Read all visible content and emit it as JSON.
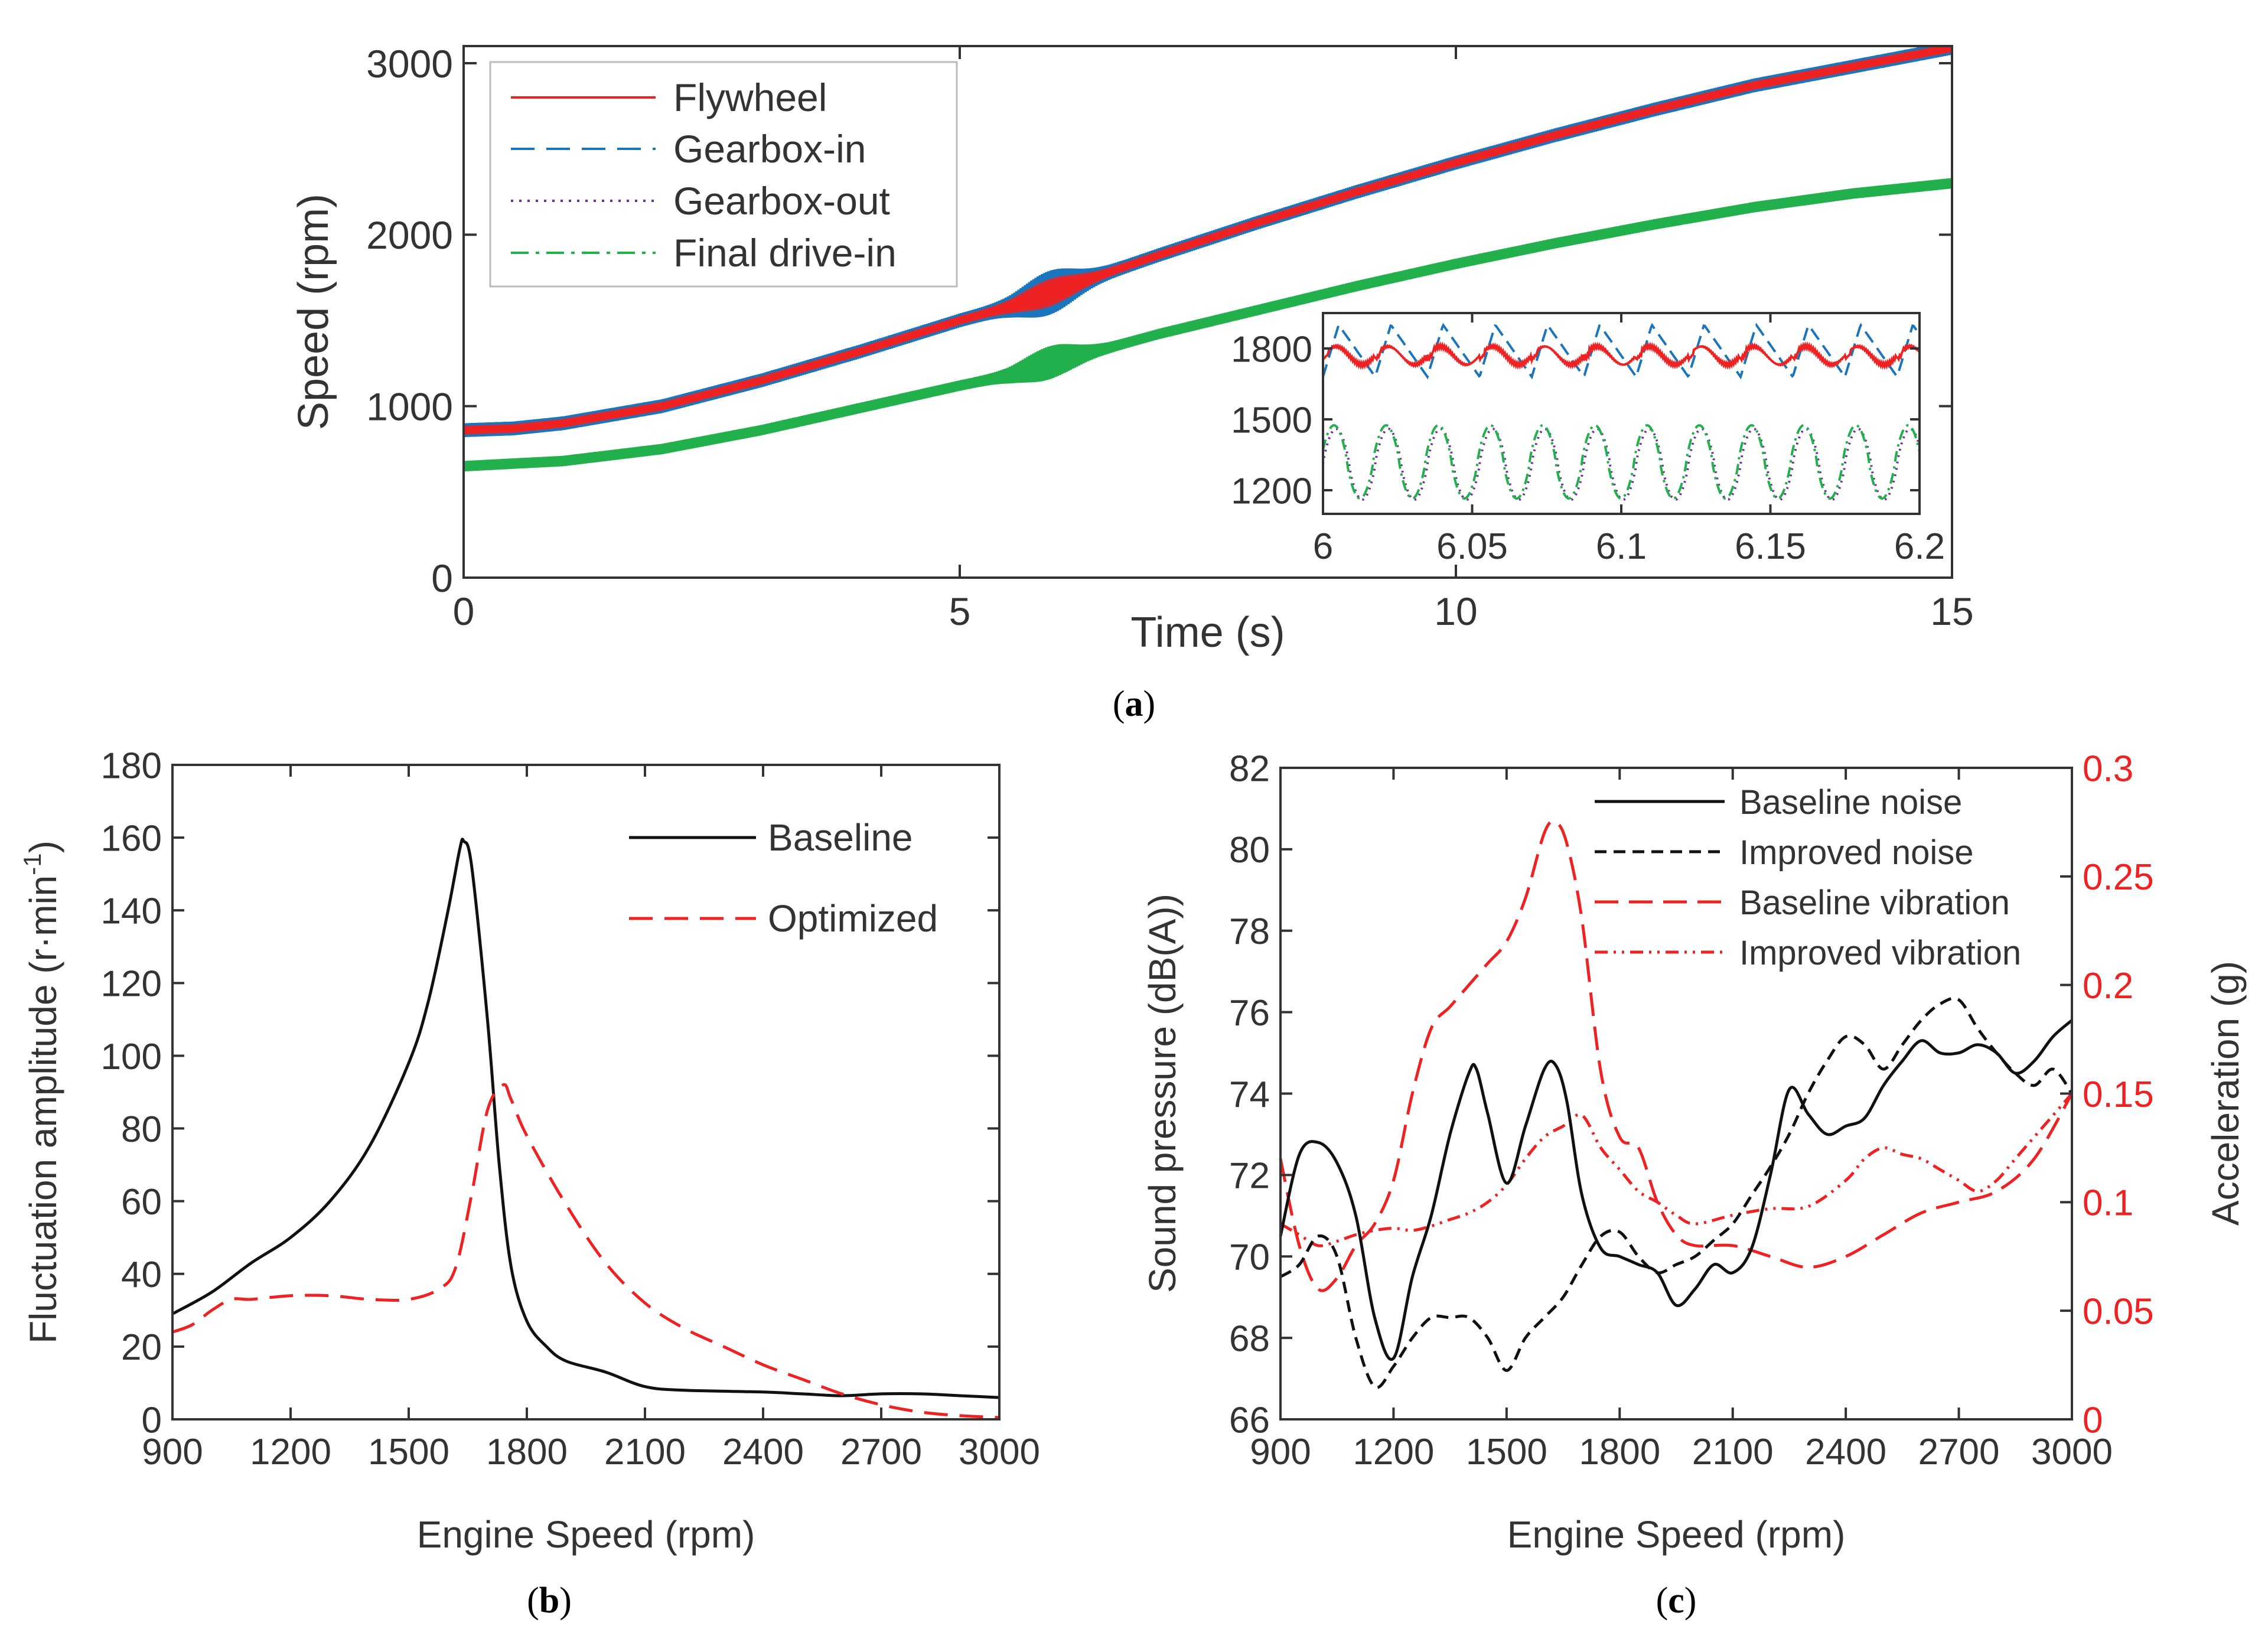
{
  "colors": {
    "red": "#ee2222",
    "blue": "#1b75bc",
    "purple": "#7030a0",
    "green": "#22b04c",
    "black": "#111111"
  },
  "chart_data": [
    {
      "id": "a",
      "type": "line",
      "caption": {
        "open": "(",
        "letter": "a",
        "close": ")"
      },
      "xlabel": "Time (s)",
      "ylabel": "Speed (rpm)",
      "xlim": [
        0,
        15
      ],
      "ylim": [
        0,
        3100
      ],
      "xticks": [
        "0",
        "5",
        "10",
        "15"
      ],
      "xtick_values": [
        0,
        5,
        10,
        15
      ],
      "yticks": [
        "0",
        "1000",
        "2000",
        "3000"
      ],
      "ytick_values": [
        0,
        1000,
        2000,
        3000
      ],
      "legend": [
        "Flywheel",
        "Gearbox-in",
        "Gearbox-out",
        "Final drive-in"
      ],
      "series": [
        {
          "name": "Flywheel",
          "x": [
            0,
            0.5,
            1,
            2,
            3,
            4,
            5,
            5.5,
            6,
            6.5,
            7,
            8,
            9,
            10,
            11,
            12,
            13,
            14,
            15
          ],
          "y": [
            860,
            870,
            900,
            1000,
            1150,
            1320,
            1500,
            1580,
            1680,
            1780,
            1880,
            2070,
            2250,
            2420,
            2580,
            2730,
            2870,
            2980,
            3090
          ],
          "ripple": 25
        },
        {
          "name": "Gearbox-in",
          "x": [
            0,
            0.5,
            1,
            2,
            3,
            4,
            5,
            5.5,
            6,
            6.5,
            7,
            8,
            9,
            10,
            11,
            12,
            13,
            14,
            15
          ],
          "y": [
            860,
            870,
            900,
            1000,
            1150,
            1320,
            1500,
            1580,
            1680,
            1780,
            1880,
            2070,
            2250,
            2420,
            2580,
            2730,
            2870,
            2980,
            3090
          ],
          "ripple": 40
        },
        {
          "name": "Gearbox-out",
          "x": [
            0,
            0.5,
            1,
            2,
            3,
            4,
            5,
            5.5,
            6,
            6.5,
            7,
            8,
            9,
            10,
            11,
            12,
            13,
            14,
            15
          ],
          "y": [
            860,
            870,
            900,
            1000,
            1150,
            1320,
            1500,
            1580,
            1680,
            1780,
            1880,
            2070,
            2250,
            2420,
            2580,
            2730,
            2870,
            2980,
            3090
          ],
          "ripple": 30
        },
        {
          "name": "Final drive-in",
          "x": [
            0,
            1,
            2,
            3,
            4,
            5,
            5.5,
            6,
            6.5,
            7,
            8,
            9,
            10,
            11,
            12,
            13,
            14,
            15
          ],
          "y": [
            650,
            680,
            750,
            860,
            990,
            1120,
            1180,
            1270,
            1340,
            1420,
            1560,
            1700,
            1830,
            1950,
            2060,
            2160,
            2240,
            2300
          ],
          "ripple": 30
        }
      ],
      "inset": {
        "xlim": [
          6,
          6.2
        ],
        "ylim": [
          1100,
          1950
        ],
        "xticks": [
          "6",
          "6.05",
          "6.1",
          "6.15",
          "6.2"
        ],
        "xtick_values": [
          6,
          6.05,
          6.1,
          6.15,
          6.2
        ],
        "yticks": [
          "1200",
          "1500",
          "1800"
        ],
        "ytick_values": [
          1200,
          1500,
          1800
        ],
        "series": [
          {
            "name": "Flywheel",
            "base": 1770,
            "amp": 55,
            "period": 0.0175,
            "shape": "saw"
          },
          {
            "name": "Gearbox-in",
            "base": 1790,
            "amp": 110,
            "period": 0.0175,
            "shape": "saw"
          },
          {
            "name": "Gearbox-out",
            "base": 1310,
            "amp": 150,
            "period": 0.0175,
            "shape": "sine"
          },
          {
            "name": "Final drive-in",
            "base": 1320,
            "amp": 155,
            "period": 0.0175,
            "shape": "sine"
          }
        ]
      }
    },
    {
      "id": "b",
      "type": "line",
      "caption": {
        "open": "(",
        "letter": "b",
        "close": ")"
      },
      "xlabel": "Engine Speed (rpm)",
      "ylabel": "Fluctuation amplitude (r·min",
      "ylabel_sup": "-1",
      "ylabel_close": ")",
      "xlim": [
        900,
        3000
      ],
      "ylim": [
        0,
        180
      ],
      "xticks": [
        "900",
        "1200",
        "1500",
        "1800",
        "2100",
        "2400",
        "2700",
        "3000"
      ],
      "xtick_values": [
        900,
        1200,
        1500,
        1800,
        2100,
        2400,
        2700,
        3000
      ],
      "yticks": [
        "0",
        "20",
        "40",
        "60",
        "80",
        "100",
        "120",
        "140",
        "160",
        "180"
      ],
      "ytick_values": [
        0,
        20,
        40,
        60,
        80,
        100,
        120,
        140,
        160,
        180
      ],
      "legend": [
        "Baseline",
        "Optimized"
      ],
      "series": [
        {
          "name": "Baseline",
          "x": [
            900,
            1000,
            1100,
            1200,
            1300,
            1400,
            1500,
            1550,
            1600,
            1630,
            1640,
            1660,
            1700,
            1730,
            1760,
            1800,
            1850,
            1900,
            2000,
            2100,
            2200,
            2400,
            2500,
            2600,
            2700,
            2800,
            2900,
            3000
          ],
          "y": [
            29,
            35,
            43,
            50,
            60,
            75,
            98,
            115,
            140,
            157,
            159,
            152,
            110,
            70,
            42,
            27,
            20,
            16,
            13,
            9,
            8,
            7.5,
            7,
            6.5,
            7,
            7,
            6.5,
            6
          ]
        },
        {
          "name": "Optimized",
          "x": [
            900,
            950,
            1000,
            1050,
            1100,
            1200,
            1300,
            1400,
            1500,
            1580,
            1620,
            1660,
            1700,
            1740,
            1760,
            1800,
            1900,
            2000,
            2100,
            2200,
            2300,
            2400,
            2500,
            2600,
            2700,
            2800,
            2900,
            3000
          ],
          "y": [
            24,
            26,
            30,
            33,
            33,
            34,
            34,
            33,
            33,
            36,
            42,
            62,
            85,
            92,
            88,
            78,
            59,
            43,
            32,
            25,
            20,
            15,
            11,
            7,
            4,
            2,
            1,
            0.5
          ]
        }
      ]
    },
    {
      "id": "c",
      "type": "line",
      "caption": {
        "open": "(",
        "letter": "c",
        "close": ")"
      },
      "xlabel": "Engine Speed (rpm)",
      "ylabel": "Sound pressure (dB(A))",
      "y2label": "Acceleration (g)",
      "xlim": [
        900,
        3000
      ],
      "ylim": [
        66,
        82
      ],
      "y2lim": [
        0,
        0.3
      ],
      "xticks": [
        "900",
        "1200",
        "1500",
        "1800",
        "2100",
        "2400",
        "2700",
        "3000"
      ],
      "xtick_values": [
        900,
        1200,
        1500,
        1800,
        2100,
        2400,
        2700,
        3000
      ],
      "yticks": [
        "66",
        "68",
        "70",
        "72",
        "74",
        "76",
        "78",
        "80",
        "82"
      ],
      "ytick_values": [
        66,
        68,
        70,
        72,
        74,
        76,
        78,
        80,
        82
      ],
      "y2ticks": [
        "0",
        "0.05",
        "0.1",
        "0.15",
        "0.2",
        "0.25",
        "0.3"
      ],
      "y2tick_values": [
        0,
        0.05,
        0.1,
        0.15,
        0.2,
        0.25,
        0.3
      ],
      "legend": [
        "Baseline noise",
        "Improved noise",
        "Baseline vibration",
        "Improved vibration"
      ],
      "series": [
        {
          "name": "Baseline noise",
          "axis": "left",
          "x": [
            900,
            950,
            1000,
            1050,
            1100,
            1150,
            1200,
            1250,
            1300,
            1350,
            1400,
            1420,
            1450,
            1500,
            1550,
            1600,
            1630,
            1660,
            1700,
            1750,
            1800,
            1850,
            1900,
            1950,
            2000,
            2050,
            2100,
            2150,
            2200,
            2250,
            2300,
            2350,
            2400,
            2450,
            2500,
            2550,
            2600,
            2650,
            2700,
            2750,
            2800,
            2850,
            2900,
            2950,
            3000
          ],
          "y": [
            70.5,
            72.5,
            72.8,
            72.3,
            71,
            68.5,
            67.5,
            69.5,
            71,
            73,
            74.5,
            74.6,
            73.5,
            71.8,
            73.2,
            74.6,
            74.7,
            73.8,
            71.5,
            70.2,
            70,
            69.8,
            69.6,
            68.8,
            69.2,
            69.8,
            69.6,
            70.2,
            72,
            74.1,
            73.5,
            73,
            73.2,
            73.4,
            74.2,
            74.8,
            75.3,
            75,
            75,
            75.2,
            75,
            74.5,
            74.8,
            75.4,
            75.8
          ]
        },
        {
          "name": "Improved noise",
          "axis": "left",
          "x": [
            900,
            950,
            1000,
            1050,
            1100,
            1150,
            1200,
            1250,
            1300,
            1350,
            1400,
            1450,
            1500,
            1550,
            1600,
            1650,
            1700,
            1750,
            1800,
            1850,
            1900,
            1950,
            2000,
            2050,
            2100,
            2150,
            2200,
            2250,
            2300,
            2350,
            2400,
            2450,
            2500,
            2550,
            2600,
            2650,
            2700,
            2750,
            2800,
            2850,
            2900,
            2950,
            3000
          ],
          "y": [
            69.5,
            69.8,
            70.5,
            70,
            68,
            66.8,
            67.3,
            68,
            68.5,
            68.5,
            68.5,
            68,
            67.2,
            68,
            68.5,
            69,
            69.8,
            70.5,
            70.6,
            70,
            69.6,
            69.8,
            70,
            70.4,
            70.8,
            71.5,
            72.2,
            73,
            74,
            74.8,
            75.4,
            75.2,
            74.6,
            75.2,
            75.8,
            76.2,
            76.3,
            75.6,
            75,
            74.5,
            74.2,
            74.6,
            74
          ]
        },
        {
          "name": "Baseline vibration",
          "axis": "right",
          "x": [
            900,
            950,
            1000,
            1050,
            1100,
            1150,
            1200,
            1250,
            1300,
            1350,
            1400,
            1450,
            1500,
            1550,
            1600,
            1630,
            1660,
            1700,
            1750,
            1800,
            1850,
            1900,
            1950,
            2000,
            2100,
            2200,
            2300,
            2400,
            2500,
            2600,
            2700,
            2800,
            2900,
            3000
          ],
          "y": [
            0.12,
            0.08,
            0.06,
            0.065,
            0.08,
            0.09,
            0.11,
            0.15,
            0.18,
            0.19,
            0.2,
            0.21,
            0.22,
            0.24,
            0.27,
            0.275,
            0.265,
            0.23,
            0.16,
            0.13,
            0.125,
            0.1,
            0.085,
            0.08,
            0.08,
            0.075,
            0.07,
            0.075,
            0.085,
            0.095,
            0.1,
            0.105,
            0.12,
            0.15
          ]
        },
        {
          "name": "Improved vibration",
          "axis": "right",
          "x": [
            900,
            950,
            1000,
            1050,
            1100,
            1150,
            1200,
            1250,
            1300,
            1350,
            1400,
            1450,
            1500,
            1550,
            1600,
            1650,
            1700,
            1750,
            1800,
            1850,
            1900,
            1950,
            2000,
            2100,
            2200,
            2300,
            2400,
            2450,
            2500,
            2550,
            2600,
            2650,
            2700,
            2750,
            2800,
            2850,
            2900,
            2950,
            3000
          ],
          "y": [
            0.09,
            0.085,
            0.08,
            0.082,
            0.085,
            0.087,
            0.088,
            0.087,
            0.089,
            0.092,
            0.095,
            0.1,
            0.108,
            0.12,
            0.13,
            0.135,
            0.14,
            0.125,
            0.115,
            0.105,
            0.1,
            0.094,
            0.09,
            0.094,
            0.097,
            0.098,
            0.11,
            0.12,
            0.125,
            0.122,
            0.12,
            0.115,
            0.11,
            0.105,
            0.11,
            0.12,
            0.13,
            0.14,
            0.15
          ]
        }
      ]
    }
  ]
}
